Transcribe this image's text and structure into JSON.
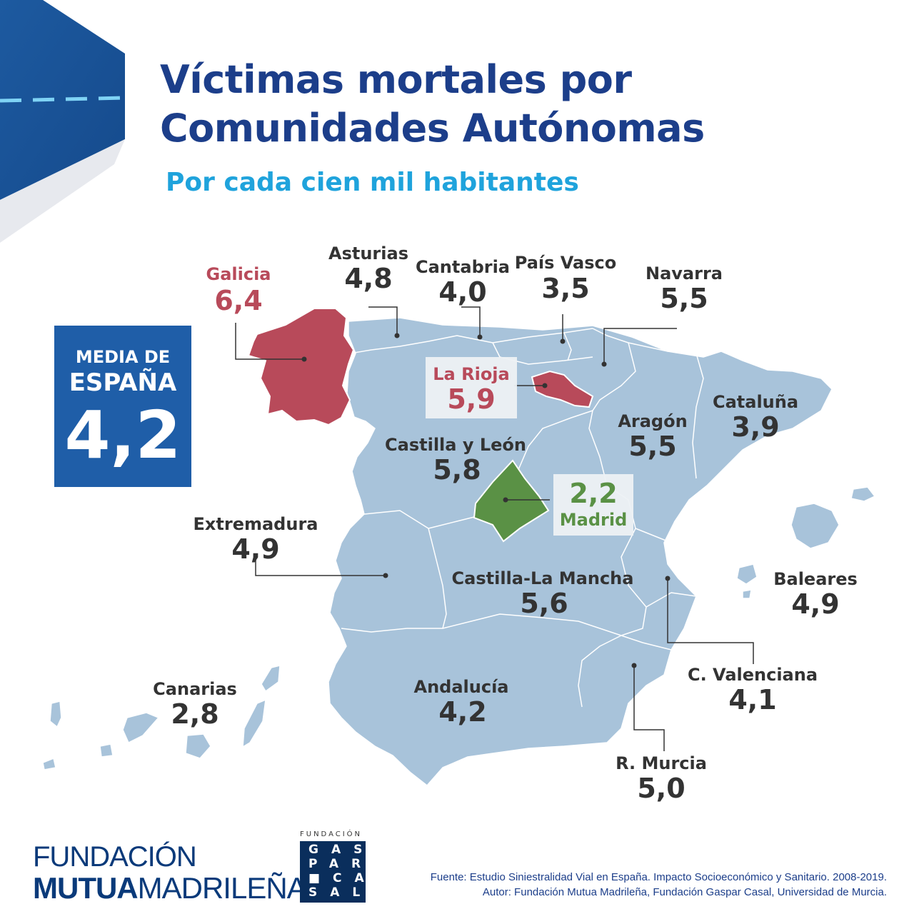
{
  "title_line1": "Víctimas mortales por",
  "title_line2": "Comunidades Autónomas",
  "subtitle": "Por cada cien mil habitantes",
  "average": {
    "line1": "MEDIA DE",
    "line2": "ESPAÑA",
    "value": "4,2"
  },
  "colors": {
    "map_fill": "#a8c3da",
    "high": "#b84a5a",
    "low": "#5a9145",
    "title": "#1c3e8a",
    "subtitle": "#1fa3dc",
    "text": "#333333"
  },
  "regions": {
    "galicia": {
      "name": "Galicia",
      "value": "6,4"
    },
    "asturias": {
      "name": "Asturias",
      "value": "4,8"
    },
    "cantabria": {
      "name": "Cantabria",
      "value": "4,0"
    },
    "pais_vasco": {
      "name": "País Vasco",
      "value": "3,5"
    },
    "navarra": {
      "name": "Navarra",
      "value": "5,5"
    },
    "la_rioja": {
      "name": "La Rioja",
      "value": "5,9"
    },
    "cataluna": {
      "name": "Cataluña",
      "value": "3,9"
    },
    "aragon": {
      "name": "Aragón",
      "value": "5,5"
    },
    "castilla_leon": {
      "name": "Castilla y León",
      "value": "5,8"
    },
    "madrid": {
      "name": "Madrid",
      "value": "2,2"
    },
    "extremadura": {
      "name": "Extremadura",
      "value": "4,9"
    },
    "castilla_la_mancha": {
      "name": "Castilla-La Mancha",
      "value": "5,6"
    },
    "baleares": {
      "name": "Baleares",
      "value": "4,9"
    },
    "c_valenciana": {
      "name": "C. Valenciana",
      "value": "4,1"
    },
    "canarias": {
      "name": "Canarias",
      "value": "2,8"
    },
    "andalucia": {
      "name": "Andalucía",
      "value": "4,2"
    },
    "murcia": {
      "name": "R. Murcia",
      "value": "5,0"
    }
  },
  "logos": {
    "fmm_line1": "FUNDACIÓN",
    "fmm_bold": "MUTUA",
    "fmm_rest": "MADRILEÑA",
    "fgc_label": "FUNDACIÓN",
    "fgc_rows": [
      "GAS",
      "PAR",
      "■CA",
      "SAL"
    ]
  },
  "source_line1": "Fuente: Estudio Siniestralidad Vial en España. Impacto Socioeconómico y Sanitario. 2008-2019.",
  "source_line2": "Autor: Fundación Mutua Madrileña, Fundación Gaspar Casal, Universidad de Murcia."
}
